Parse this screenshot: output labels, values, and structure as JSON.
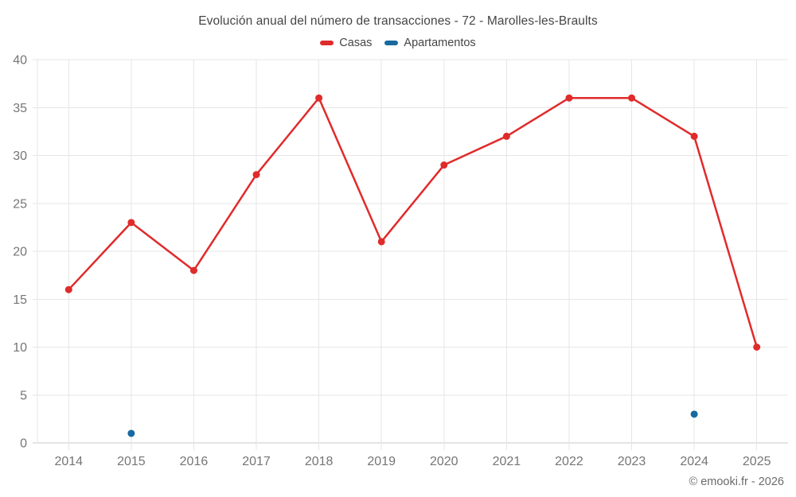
{
  "chart_data": {
    "type": "line",
    "title": "Evolución anual del número de transacciones - 72 - Marolles-les-Braults",
    "categories": [
      "2014",
      "2015",
      "2016",
      "2017",
      "2018",
      "2019",
      "2020",
      "2021",
      "2022",
      "2023",
      "2024",
      "2025"
    ],
    "series": [
      {
        "name": "Casas",
        "color": "#e02b2b",
        "values": [
          16,
          23,
          18,
          28,
          36,
          21,
          29,
          32,
          36,
          36,
          32,
          10
        ]
      },
      {
        "name": "Apartamentos",
        "color": "#17699f",
        "values": [
          null,
          1,
          null,
          null,
          null,
          null,
          null,
          null,
          null,
          null,
          3,
          null
        ]
      }
    ],
    "ylim": [
      0,
      40
    ],
    "ytick_step": 5,
    "yticks": [
      0,
      5,
      10,
      15,
      20,
      25,
      30,
      35,
      40
    ],
    "grid": true,
    "legend_position": "top",
    "xlabel": "",
    "ylabel": "",
    "colors": {
      "grid": "#e6e6e6",
      "axis_line": "#c9c9c9",
      "tick_label": "#757575",
      "title_text": "#454545"
    }
  },
  "footer": {
    "copyright": "© emooki.fr - 2026"
  }
}
